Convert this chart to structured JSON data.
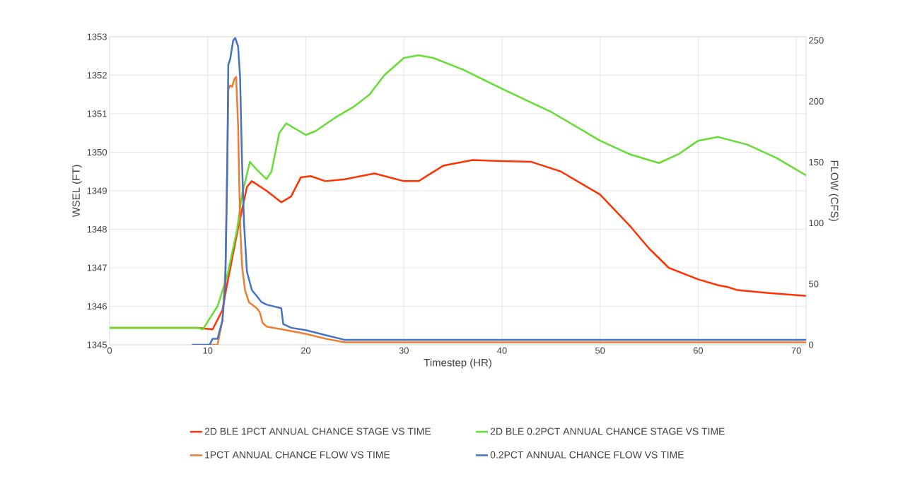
{
  "chart_data": {
    "type": "line",
    "xlabel": "Timestep (HR)",
    "ylabel": "WSEL (FT)",
    "y2label": "FLOW (CFS)",
    "xlim": [
      0,
      71
    ],
    "xticks": [
      0,
      10,
      20,
      30,
      40,
      50,
      60,
      70
    ],
    "ylim": [
      1345,
      1353
    ],
    "yticks": [
      1345,
      1346,
      1347,
      1348,
      1349,
      1350,
      1351,
      1352,
      1353
    ],
    "y2lim": [
      0,
      253
    ],
    "y2ticks": [
      0,
      50,
      100,
      150,
      200,
      250
    ],
    "grid": true,
    "legend": "bottom",
    "series": [
      {
        "name": "2D BLE 1PCT ANNUAL CHANCE STAGE VS TIME",
        "color": "#ff3300",
        "x": [
          0,
          9,
          10.5,
          11.5,
          12,
          13,
          14,
          14.5,
          16,
          17.5,
          18.5,
          19.5,
          20.5,
          22,
          24,
          27,
          30,
          31.5,
          34,
          37,
          40,
          43,
          46,
          50,
          53,
          55,
          57,
          60,
          62,
          63,
          64,
          67,
          71
        ],
        "values": [
          1345.44,
          1345.44,
          1345.4,
          1345.9,
          1346.6,
          1347.9,
          1349.1,
          1349.25,
          1349.0,
          1348.7,
          1348.85,
          1349.35,
          1349.38,
          1349.25,
          1349.3,
          1349.45,
          1349.25,
          1349.25,
          1349.65,
          1349.8,
          1349.77,
          1349.75,
          1349.5,
          1348.9,
          1348.1,
          1347.5,
          1347.0,
          1346.7,
          1346.55,
          1346.5,
          1346.42,
          1346.35,
          1346.27
        ]
      },
      {
        "name": "2D BLE 0.2PCT ANNUAL CHANCE STAGE VS TIME",
        "color": "#66dd33",
        "x": [
          0,
          9,
          9.5,
          11,
          12,
          13,
          13.5,
          14.3,
          15,
          16,
          16.5,
          17.3,
          18,
          19,
          20,
          21,
          23,
          25,
          26.5,
          28,
          30,
          31.5,
          33,
          36,
          40,
          45,
          50,
          53,
          56,
          58,
          60,
          62,
          65,
          68,
          71
        ],
        "values": [
          1345.44,
          1345.44,
          1345.4,
          1346.0,
          1346.8,
          1348.0,
          1348.9,
          1349.75,
          1349.55,
          1349.3,
          1349.5,
          1350.5,
          1350.75,
          1350.6,
          1350.45,
          1350.55,
          1350.9,
          1351.2,
          1351.5,
          1352.0,
          1352.45,
          1352.52,
          1352.45,
          1352.15,
          1351.65,
          1351.05,
          1350.3,
          1349.95,
          1349.72,
          1349.95,
          1350.3,
          1350.4,
          1350.2,
          1349.85,
          1349.4
        ]
      },
      {
        "name": "1PCT ANNUAL CHANCE FLOW VS TIME",
        "color": "#ed7d31",
        "axis": "y2",
        "x": [
          10.3,
          11,
          11.5,
          11.8,
          12,
          12.1,
          12.3,
          12.5,
          12.7,
          12.9,
          13.1,
          13.3,
          13.5,
          13.8,
          14.2,
          15,
          15.3,
          15.6,
          16,
          18,
          20,
          22,
          24,
          71
        ],
        "values": [
          0,
          0,
          20,
          60,
          150,
          210,
          213,
          212,
          218,
          220,
          180,
          100,
          65,
          45,
          35,
          30,
          27,
          18,
          15,
          12,
          9,
          5,
          2,
          2
        ]
      },
      {
        "name": "0.2PCT ANNUAL CHANCE FLOW VS TIME",
        "color": "#4472c4",
        "axis": "y2",
        "x": [
          8.4,
          10.2,
          10.5,
          11,
          11.5,
          11.8,
          12,
          12.1,
          12.3,
          12.6,
          12.8,
          13.1,
          13.3,
          13.5,
          13.7,
          14,
          14.5,
          15,
          15.5,
          16,
          17,
          17.5,
          17.7,
          18.5,
          20,
          22,
          24,
          71
        ],
        "values": [
          0,
          0,
          5,
          5,
          20,
          50,
          150,
          230,
          235,
          250,
          252,
          245,
          220,
          150,
          100,
          60,
          45,
          40,
          35,
          33,
          31,
          30,
          17,
          14,
          12,
          8,
          4,
          4
        ]
      }
    ]
  }
}
